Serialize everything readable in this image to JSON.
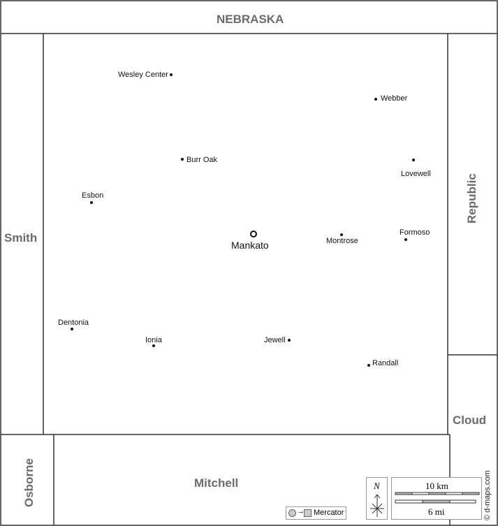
{
  "neighbors": {
    "north": "NEBRASKA",
    "west": "Smith",
    "east_upper": "Republic",
    "east_lower": "Cloud",
    "south": "Mitchell",
    "southwest": "Osborne"
  },
  "county_seat": "Mankato",
  "towns": [
    "Wesley Center",
    "Webber",
    "Burr Oak",
    "Lovewell",
    "Esbon",
    "Montrose",
    "Formoso",
    "Dentonia",
    "Ionia",
    "Jewell",
    "Randall"
  ],
  "legend": {
    "projection": "Mercator",
    "north": "N",
    "scale_km": "10 km",
    "scale_mi": "6 mi",
    "credit": "© d-maps.com"
  },
  "colors": {
    "border": "#333333",
    "region_label": "#6b6b6b"
  }
}
